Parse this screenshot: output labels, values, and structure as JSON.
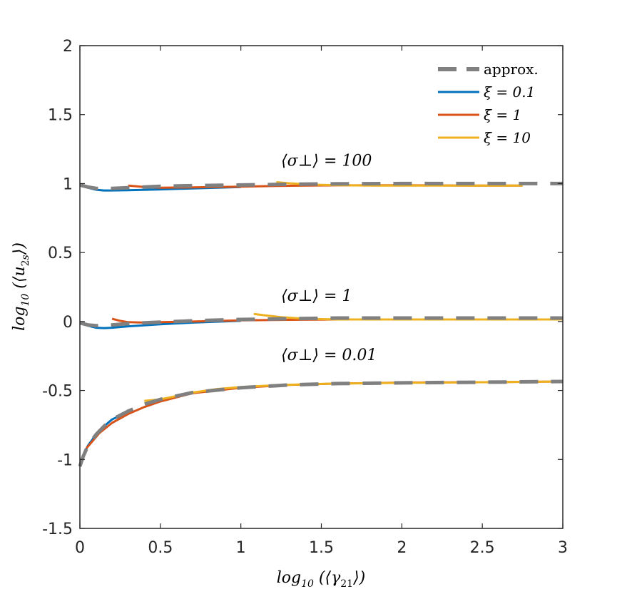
{
  "chart_data": {
    "type": "line",
    "xlabel": "log10 (⟨γ21⟩)",
    "ylabel": "log10 (⟨u2s⟩)",
    "xlim": [
      0,
      3
    ],
    "ylim": [
      -1.5,
      2
    ],
    "xticks": [
      0,
      0.5,
      1,
      1.5,
      2,
      2.5,
      3
    ],
    "xtick_labels": [
      "0",
      "0.5",
      "1",
      "1.5",
      "2",
      "2.5",
      "3"
    ],
    "yticks": [
      -1.5,
      -1,
      -0.5,
      0,
      0.5,
      1,
      1.5,
      2
    ],
    "ytick_labels": [
      "-1.5",
      "-1",
      "-0.5",
      "0",
      "0.5",
      "1",
      "1.5",
      "2"
    ],
    "grid": false,
    "legend_position": "top-right",
    "annotations": [
      {
        "text": "⟨σ⊥⟩ = 100",
        "x": 1.25,
        "y": 1.13
      },
      {
        "text": "⟨σ⊥⟩ = 1",
        "x": 1.25,
        "y": 0.15
      },
      {
        "text": "⟨σ⊥⟩ = 0.01",
        "x": 1.25,
        "y": -0.28
      }
    ],
    "series": [
      {
        "name": "approx.",
        "color": "#808080",
        "style": "dashed",
        "groups": [
          {
            "x": [
              0,
              0.05,
              0.1,
              0.2,
              0.3,
              0.5,
              0.7,
              1.0,
              1.3,
              1.6,
              2.0,
              2.5,
              3.0
            ],
            "y": [
              0.99,
              0.975,
              0.965,
              0.965,
              0.97,
              0.98,
              0.985,
              0.99,
              0.995,
              0.998,
              1.0,
              1.0,
              1.0
            ]
          },
          {
            "x": [
              0,
              0.05,
              0.1,
              0.2,
              0.3,
              0.5,
              0.7,
              1.0,
              1.3,
              1.6,
              2.0,
              2.5,
              3.0
            ],
            "y": [
              -0.01,
              -0.025,
              -0.03,
              -0.025,
              -0.015,
              -0.005,
              0.005,
              0.015,
              0.02,
              0.025,
              0.025,
              0.025,
              0.025
            ]
          },
          {
            "x": [
              0,
              0.02,
              0.05,
              0.1,
              0.15,
              0.2,
              0.3,
              0.4,
              0.5,
              0.7,
              1.0,
              1.3,
              1.6,
              2.0,
              2.5,
              3.0
            ],
            "y": [
              -1.05,
              -0.98,
              -0.9,
              -0.82,
              -0.76,
              -0.71,
              -0.65,
              -0.6,
              -0.565,
              -0.515,
              -0.48,
              -0.46,
              -0.45,
              -0.445,
              -0.44,
              -0.435
            ]
          }
        ]
      },
      {
        "name": "ξ = 0.1",
        "color": "#0072BD",
        "style": "solid",
        "groups": [
          {
            "x": [
              0,
              0.05,
              0.1,
              0.15,
              0.2,
              0.3,
              0.5,
              0.7,
              1.0
            ],
            "y": [
              0.99,
              0.97,
              0.955,
              0.95,
              0.95,
              0.952,
              0.958,
              0.965,
              0.975
            ]
          },
          {
            "x": [
              0,
              0.05,
              0.1,
              0.15,
              0.2,
              0.3,
              0.5,
              0.7,
              1.0
            ],
            "y": [
              -0.01,
              -0.03,
              -0.045,
              -0.048,
              -0.045,
              -0.035,
              -0.02,
              -0.008,
              0.005
            ]
          },
          {
            "x": [
              0,
              0.02,
              0.05,
              0.1,
              0.15,
              0.2,
              0.3
            ],
            "y": [
              -1.04,
              -0.97,
              -0.9,
              -0.82,
              -0.76,
              -0.71,
              -0.655
            ]
          }
        ]
      },
      {
        "name": "ξ = 1",
        "color": "#D95319",
        "style": "solid",
        "groups": [
          {
            "x": [
              0.3,
              0.4,
              0.5,
              0.7,
              1.0,
              1.3,
              1.6,
              2.0,
              2.4,
              2.75
            ],
            "y": [
              0.985,
              0.975,
              0.97,
              0.972,
              0.978,
              0.984,
              0.987,
              0.988,
              0.985,
              0.985
            ]
          },
          {
            "x": [
              0.2,
              0.25,
              0.3,
              0.4,
              0.5,
              0.7,
              1.0,
              1.3,
              1.6,
              2.0,
              2.5,
              3.0
            ],
            "y": [
              0.02,
              0.005,
              -0.005,
              -0.008,
              -0.005,
              0.0,
              0.008,
              0.012,
              0.015,
              0.015,
              0.015,
              0.015
            ]
          },
          {
            "x": [
              0.04,
              0.08,
              0.12,
              0.2,
              0.3,
              0.4,
              0.5,
              0.7,
              1.0,
              1.3,
              1.6,
              2.0,
              2.5,
              3.0
            ],
            "y": [
              -0.92,
              -0.865,
              -0.81,
              -0.735,
              -0.67,
              -0.62,
              -0.58,
              -0.52,
              -0.48,
              -0.46,
              -0.45,
              -0.443,
              -0.44,
              -0.435
            ]
          }
        ]
      },
      {
        "name": "ξ = 10",
        "color": "#EDB120",
        "style": "solid",
        "groups": [
          {
            "x": [
              1.22,
              1.3,
              1.45,
              1.6,
              1.8,
              2.0,
              2.3,
              2.6,
              2.75
            ],
            "y": [
              1.01,
              1.002,
              0.992,
              0.988,
              0.985,
              0.985,
              0.985,
              0.985,
              0.985
            ]
          },
          {
            "x": [
              1.08,
              1.15,
              1.25,
              1.4,
              1.6,
              1.8,
              2.0,
              2.5,
              3.0
            ],
            "y": [
              0.055,
              0.045,
              0.032,
              0.02,
              0.015,
              0.015,
              0.015,
              0.015,
              0.015
            ]
          },
          {
            "x": [
              0.4,
              0.5,
              0.6,
              0.7,
              0.85,
              1.0,
              1.2,
              1.4,
              1.6,
              2.0,
              2.5,
              3.0
            ],
            "y": [
              -0.575,
              -0.565,
              -0.54,
              -0.515,
              -0.49,
              -0.475,
              -0.463,
              -0.455,
              -0.45,
              -0.445,
              -0.44,
              -0.435
            ]
          }
        ]
      }
    ]
  }
}
